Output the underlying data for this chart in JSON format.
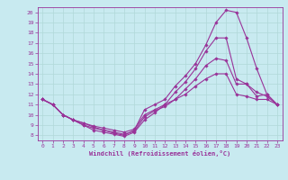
{
  "xlabel": "Windchill (Refroidissement éolien,°C)",
  "bg_color": "#c8eaf0",
  "grid_color": "#b0d8d8",
  "line_color": "#993399",
  "xlim": [
    -0.5,
    23.5
  ],
  "ylim": [
    7.5,
    20.5
  ],
  "xticks": [
    0,
    1,
    2,
    3,
    4,
    5,
    6,
    7,
    8,
    9,
    10,
    11,
    12,
    13,
    14,
    15,
    16,
    17,
    18,
    19,
    20,
    21,
    22,
    23
  ],
  "yticks": [
    8,
    9,
    10,
    11,
    12,
    13,
    14,
    15,
    16,
    17,
    18,
    19,
    20
  ],
  "lines": [
    [
      11.5,
      11.0,
      10.0,
      9.5,
      9.2,
      8.8,
      8.5,
      8.2,
      8.0,
      8.5,
      10.5,
      11.0,
      11.5,
      12.8,
      13.8,
      15.0,
      16.8,
      19.0,
      20.2,
      20.0,
      17.5,
      14.5,
      12.0,
      11.0
    ],
    [
      11.5,
      11.0,
      10.0,
      9.5,
      9.0,
      8.5,
      8.3,
      8.1,
      7.9,
      8.3,
      9.5,
      10.2,
      11.0,
      12.2,
      13.2,
      14.5,
      16.2,
      17.5,
      17.5,
      13.5,
      13.0,
      12.2,
      11.8,
      11.0
    ],
    [
      11.5,
      11.0,
      10.0,
      9.5,
      9.0,
      8.7,
      8.5,
      8.3,
      8.1,
      8.4,
      9.8,
      10.4,
      10.8,
      11.5,
      12.5,
      13.5,
      14.8,
      15.5,
      15.3,
      13.0,
      13.0,
      11.8,
      12.0,
      11.0
    ],
    [
      11.5,
      11.0,
      10.0,
      9.5,
      9.2,
      8.9,
      8.7,
      8.5,
      8.3,
      8.6,
      10.0,
      10.5,
      11.0,
      11.5,
      12.0,
      12.8,
      13.5,
      14.0,
      14.0,
      12.0,
      11.8,
      11.5,
      11.5,
      11.0
    ]
  ]
}
